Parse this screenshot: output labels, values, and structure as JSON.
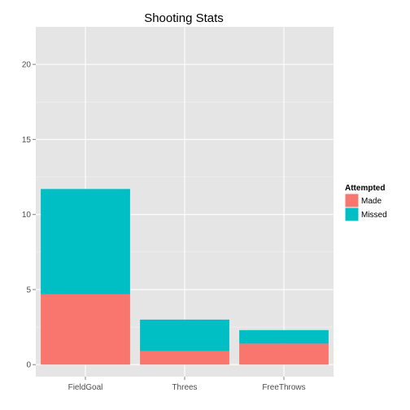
{
  "chart_data": {
    "type": "bar",
    "stacked": true,
    "title": "Shooting Stats",
    "xlabel": "",
    "ylabel": "",
    "categories": [
      "FieldGoal",
      "Threes",
      "FreeThrows"
    ],
    "series": [
      {
        "name": "Made",
        "values": [
          4.7,
          0.9,
          1.4
        ],
        "color": "#F8766D"
      },
      {
        "name": "Missed",
        "values": [
          7.0,
          2.1,
          0.9
        ],
        "color": "#00BFC4"
      }
    ],
    "ylim": [
      -0.8,
      22.5
    ],
    "yticks": [
      0,
      5,
      10,
      15,
      20
    ],
    "grid": true,
    "legend": {
      "title": "Attempted",
      "position": "right",
      "labels": [
        "Made",
        "Missed"
      ]
    }
  }
}
